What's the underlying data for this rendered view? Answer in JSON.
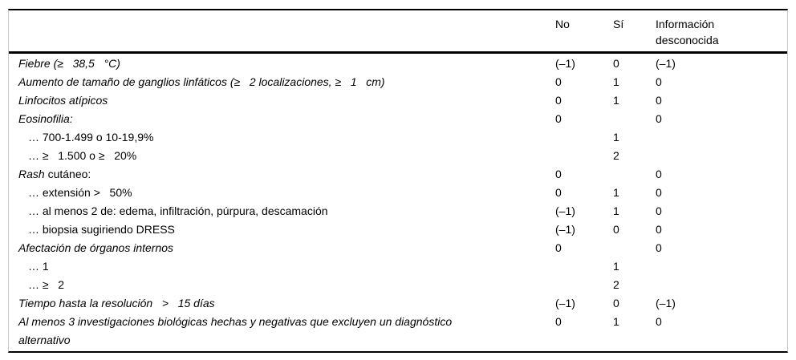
{
  "table": {
    "header": {
      "label": "",
      "no": "No",
      "si": "Sí",
      "unknown": "Información\ndesconocida"
    },
    "rows": [
      {
        "label": "Fiebre (≥   38,5   °C)",
        "no": "(–1)",
        "si": "0",
        "unknown": "(–1)"
      },
      {
        "label": "Aumento de tamaño de ganglios linfáticos (≥   2 localizaciones, ≥   1   cm)",
        "no": "0",
        "si": "1",
        "unknown": "0"
      },
      {
        "label": "Linfocitos atípicos",
        "no": "0",
        "si": "1",
        "unknown": "0"
      },
      {
        "label": "Eosinofilia:",
        "no": "0",
        "si": "",
        "unknown": "0"
      },
      {
        "label": "… 700-1.499 o 10-19,9%",
        "no": "",
        "si": "1",
        "unknown": ""
      },
      {
        "label": "… ≥   1.500 o ≥   20%",
        "no": "",
        "si": "2",
        "unknown": ""
      },
      {
        "label_italic": "Rash",
        "label_rest": " cutáneo:",
        "no": "0",
        "si": "",
        "unknown": "0"
      },
      {
        "label": "… extensión >   50%",
        "no": "0",
        "si": "1",
        "unknown": "0"
      },
      {
        "label": "… al menos 2 de: edema, infiltración, púrpura, descamación",
        "no": "(–1)",
        "si": "1",
        "unknown": "0"
      },
      {
        "label": "… biopsia sugiriendo DRESS",
        "no": "(–1)",
        "si": "0",
        "unknown": "0"
      },
      {
        "label": "Afectación de órganos internos",
        "no": "0",
        "si": "",
        "unknown": "0"
      },
      {
        "label": "… 1",
        "no": "",
        "si": "1",
        "unknown": ""
      },
      {
        "label": "… ≥   2",
        "no": "",
        "si": "2",
        "unknown": ""
      },
      {
        "label": "Tiempo hasta la resolución   >   15 días",
        "no": "(–1)",
        "si": "0",
        "unknown": "(–1)"
      },
      {
        "label": "Al menos 3 investigaciones biológicas hechas y negativas que excluyen un diagnóstico\nalternativo",
        "no": "0",
        "si": "1",
        "unknown": "0"
      }
    ]
  }
}
